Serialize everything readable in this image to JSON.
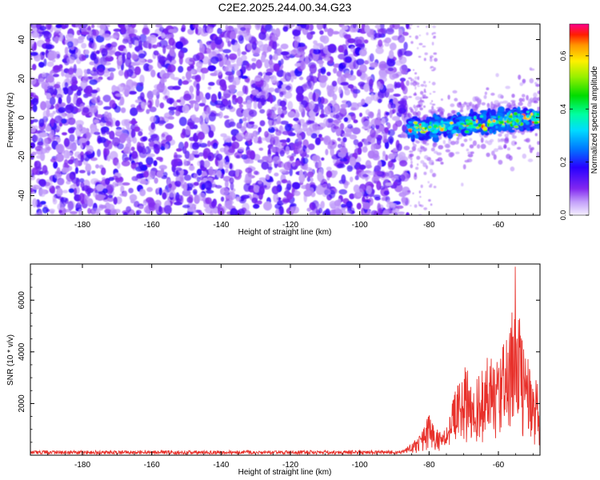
{
  "chart_data": [
    {
      "type": "heatmap",
      "title": "C2E2.2025.244.00.34.G23",
      "xlabel": "Height of straight line (km)",
      "ylabel": "Frequency (Hz)",
      "xlim": [
        -195,
        -48
      ],
      "ylim": [
        -50,
        48
      ],
      "xticks": [
        -180,
        -160,
        -140,
        -120,
        -100,
        -80,
        -60
      ],
      "yticks": [
        -40,
        -20,
        0,
        20,
        40
      ],
      "noise_region": {
        "x_range": [
          -195,
          -86
        ],
        "freq_range": [
          -50,
          48
        ],
        "typical_amplitude": 0.05
      },
      "signal_band": {
        "x_range": [
          -86,
          -48
        ],
        "freq_start": -6,
        "freq_end": 0,
        "half_width_hz": 4,
        "typical_amplitude": 0.3,
        "peak_amplitude": 0.7
      },
      "colorbar": {
        "label": "Normalized spectral amplitude",
        "range": [
          0.0,
          0.72
        ],
        "ticks": [
          "0.0",
          "0.2",
          "0.4",
          "0.6"
        ],
        "tick_values": [
          0.0,
          0.2,
          0.4,
          0.6
        ]
      }
    },
    {
      "type": "line",
      "title": "",
      "xlabel": "Height of straight line (km)",
      "ylabel": "SNR (10 * v/v)",
      "xlim": [
        -195,
        -48
      ],
      "ylim": [
        0,
        7400
      ],
      "xticks": [
        -180,
        -160,
        -140,
        -120,
        -100,
        -80,
        -60
      ],
      "yticks": [
        2000,
        4000,
        6000
      ],
      "color": "#e8302a",
      "series": [
        {
          "name": "SNR",
          "x": [
            -195,
            -180,
            -160,
            -140,
            -120,
            -100,
            -88,
            -85,
            -82,
            -80,
            -78,
            -76,
            -74,
            -72,
            -70,
            -68,
            -66,
            -64,
            -62,
            -60,
            -58,
            -56,
            -55,
            -54,
            -52,
            -50,
            -48
          ],
          "values": [
            150,
            150,
            150,
            150,
            150,
            160,
            170,
            400,
            800,
            1400,
            900,
            700,
            1500,
            2400,
            3300,
            2500,
            2800,
            3100,
            3600,
            3400,
            4100,
            5600,
            6800,
            4700,
            3400,
            2800,
            2200
          ]
        }
      ]
    }
  ]
}
